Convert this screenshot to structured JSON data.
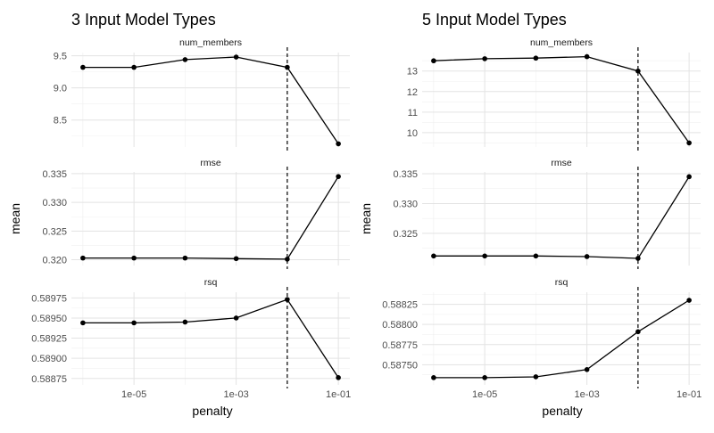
{
  "chart_data": [
    {
      "type": "line",
      "title": "3 Input Model Types",
      "xlabel": "penalty",
      "ylabel": "mean",
      "x_scale": "log10",
      "x_ticks": [
        "1e-05",
        "1e-03",
        "1e-01"
      ],
      "x": [
        1e-06,
        1e-05,
        0.0001,
        0.001,
        0.01,
        0.1
      ],
      "vline_x": 0.01,
      "grid": true,
      "facets": [
        {
          "name": "num_members",
          "ylim": [
            8.08,
            9.55
          ],
          "yticks": [
            "9.5",
            "9.0",
            "8.5"
          ],
          "values": [
            9.32,
            9.32,
            9.44,
            9.48,
            9.32,
            8.13
          ]
        },
        {
          "name": "rmse",
          "ylim": [
            0.319,
            0.3353
          ],
          "yticks": [
            "0.335",
            "0.330",
            "0.325",
            "0.320"
          ],
          "values": [
            0.3203,
            0.3203,
            0.3203,
            0.3202,
            0.3201,
            0.3345
          ]
        },
        {
          "name": "rsq",
          "ylim": [
            0.58867,
            0.58982
          ],
          "yticks": [
            "0.58975",
            "0.58950",
            "0.58925",
            "0.58900",
            "0.58875"
          ],
          "values": [
            0.58944,
            0.58944,
            0.58945,
            0.5895,
            0.58973,
            0.58876
          ]
        }
      ]
    },
    {
      "type": "line",
      "title": "5 Input Model Types",
      "xlabel": "penalty",
      "ylabel": "mean",
      "x_scale": "log10",
      "x_ticks": [
        "1e-05",
        "1e-03",
        "1e-01"
      ],
      "x": [
        1e-06,
        1e-05,
        0.0001,
        0.001,
        0.01,
        0.1
      ],
      "vline_x": 0.01,
      "grid": true,
      "facets": [
        {
          "name": "num_members",
          "ylim": [
            9.3,
            13.9
          ],
          "yticks": [
            "13",
            "12",
            "11",
            "10"
          ],
          "values": [
            13.5,
            13.6,
            13.63,
            13.7,
            13.0,
            9.5
          ]
        },
        {
          "name": "rmse",
          "ylim": [
            0.3196,
            0.3353
          ],
          "yticks": [
            "0.335",
            "0.330",
            "0.325"
          ],
          "values": [
            0.3212,
            0.3212,
            0.3212,
            0.3211,
            0.3208,
            0.3345
          ]
        },
        {
          "name": "rsq",
          "ylim": [
            0.58725,
            0.5884
          ],
          "yticks": [
            "0.58825",
            "0.58800",
            "0.58775",
            "0.58750"
          ],
          "values": [
            0.58734,
            0.58734,
            0.58735,
            0.58744,
            0.58791,
            0.5883
          ]
        }
      ]
    }
  ]
}
